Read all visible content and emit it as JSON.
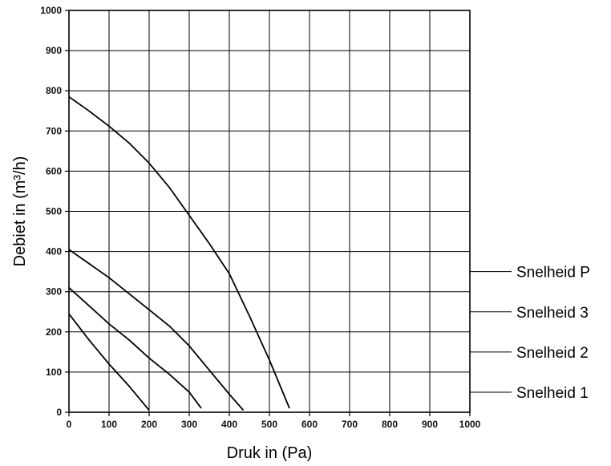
{
  "chart_data": {
    "type": "line",
    "xlabel": "Druk in (Pa)",
    "ylabel": "Debiet in (m³/h)",
    "xlim": [
      0,
      1000
    ],
    "ylim": [
      0,
      1000
    ],
    "x_ticks": [
      "0",
      "100",
      "200",
      "300",
      "400",
      "500",
      "600",
      "700",
      "800",
      "900",
      "1000"
    ],
    "y_ticks": [
      "0",
      "100",
      "200",
      "300",
      "400",
      "500",
      "600",
      "700",
      "800",
      "900",
      "1000"
    ],
    "grid": true,
    "line_color": "#000000",
    "series": [
      {
        "name": "Snelheid P",
        "label_level": 350,
        "x": [
          0,
          50,
          100,
          150,
          200,
          250,
          300,
          350,
          400,
          450,
          500,
          550
        ],
        "y": [
          785,
          750,
          712,
          670,
          620,
          560,
          490,
          420,
          345,
          240,
          130,
          10
        ]
      },
      {
        "name": "Snelheid 3",
        "label_level": 250,
        "x": [
          0,
          50,
          100,
          150,
          200,
          250,
          300,
          350,
          400,
          435
        ],
        "y": [
          405,
          370,
          335,
          295,
          255,
          215,
          165,
          105,
          45,
          5
        ]
      },
      {
        "name": "Snelheid 2",
        "label_level": 150,
        "x": [
          0,
          50,
          100,
          150,
          200,
          250,
          300,
          330
        ],
        "y": [
          310,
          265,
          220,
          180,
          135,
          95,
          50,
          10
        ]
      },
      {
        "name": "Snelheid 1",
        "label_level": 50,
        "x": [
          0,
          50,
          100,
          150,
          200
        ],
        "y": [
          245,
          180,
          120,
          65,
          5
        ]
      }
    ]
  }
}
